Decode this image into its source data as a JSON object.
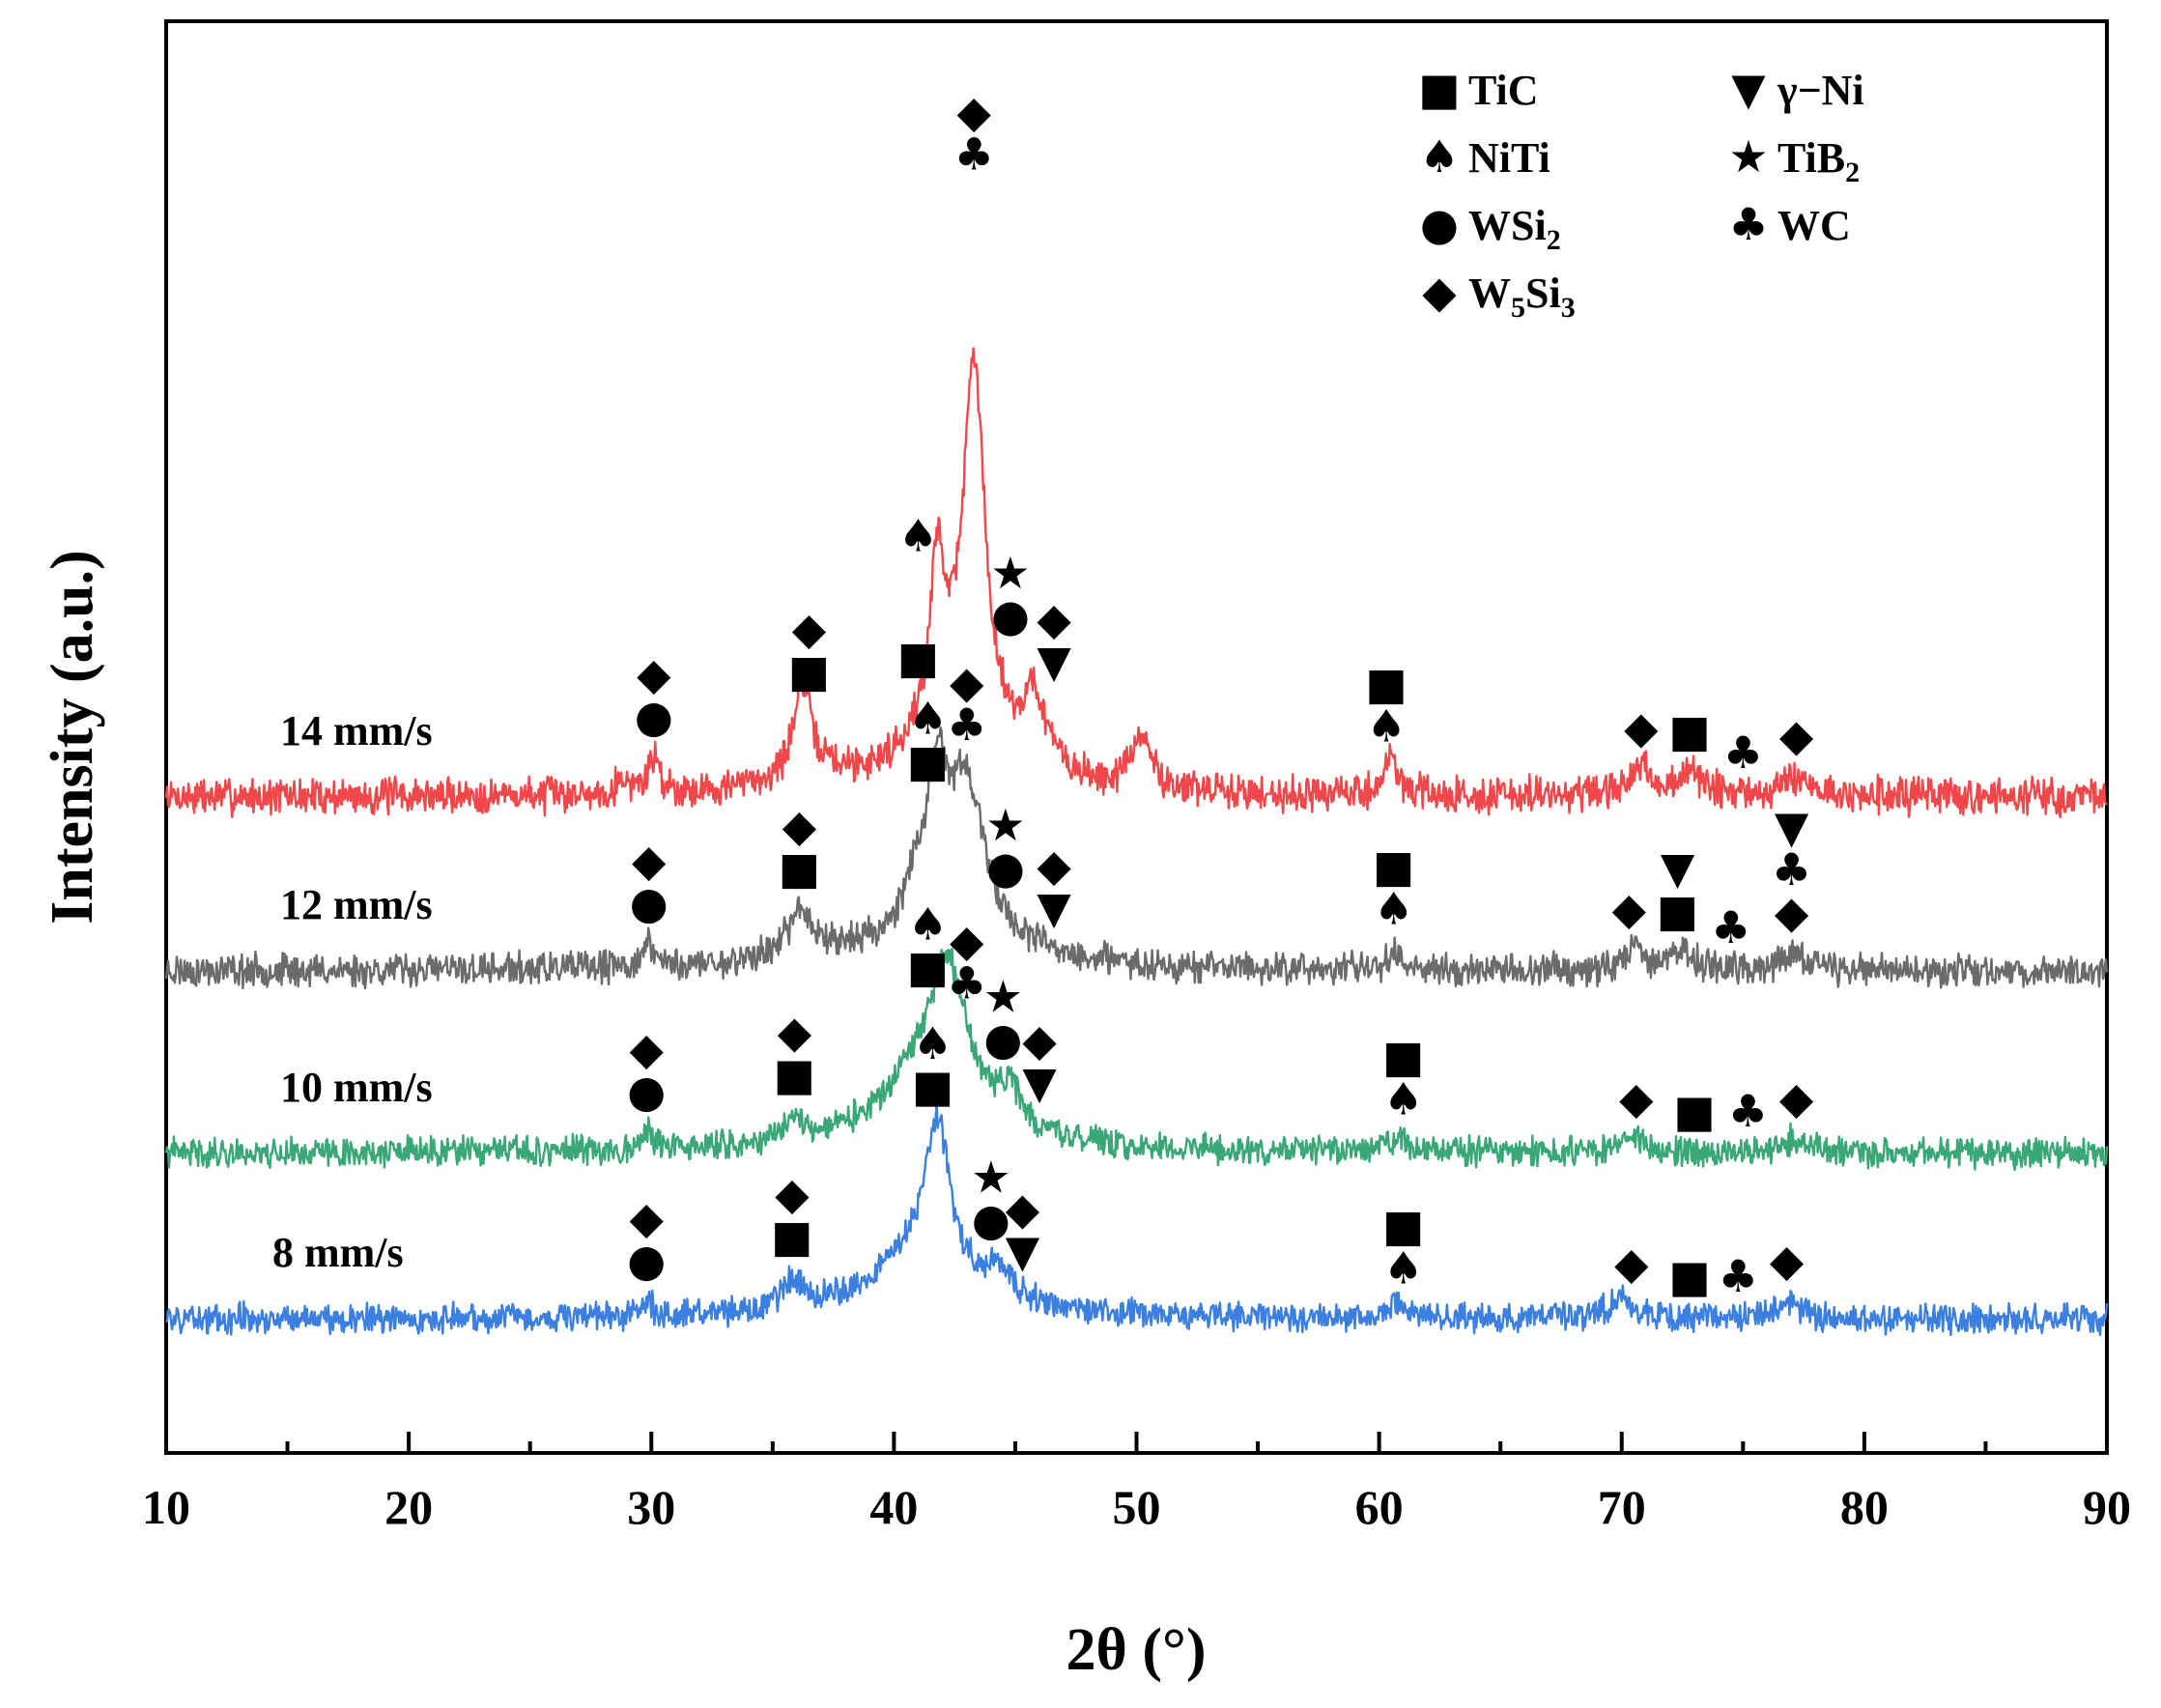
{
  "chart_data": {
    "type": "line",
    "title": "",
    "xlabel": "2θ (°)",
    "ylabel": "Intensity (a.u.)",
    "xlim": [
      10,
      90
    ],
    "xticks": [
      10,
      20,
      30,
      40,
      50,
      60,
      70,
      80,
      90
    ],
    "xtick_labels": [
      "10",
      "20",
      "30",
      "40",
      "50",
      "60",
      "70",
      "80",
      "90"
    ],
    "yticks_shown": false,
    "legend_placement": "top-right",
    "legend": [
      {
        "phase": "TiC",
        "text": "TiC",
        "sub": "",
        "symbol": "square",
        "glyph": "■"
      },
      {
        "phase": "gNi",
        "text": "γ−Ni",
        "sub": "",
        "symbol": "triangle-down",
        "glyph": "▼"
      },
      {
        "phase": "NiTi",
        "text": "NiTi",
        "sub": "",
        "symbol": "spade",
        "glyph": "♠"
      },
      {
        "phase": "TiB2",
        "text": "TiB",
        "sub": "2",
        "symbol": "star",
        "glyph": "★"
      },
      {
        "phase": "WSi2",
        "text": "WSi",
        "sub": "2",
        "symbol": "circle",
        "glyph": "●"
      },
      {
        "phase": "WC",
        "text": "WC",
        "sub": "",
        "symbol": "club",
        "glyph": "♣"
      },
      {
        "phase": "W5Si3",
        "text": "W5Si3",
        "rich": [
          {
            "t": "W",
            "sub": false
          },
          {
            "t": "5",
            "sub": true
          },
          {
            "t": "Si",
            "sub": false
          },
          {
            "t": "3",
            "sub": true
          }
        ],
        "symbol": "diamond",
        "glyph": "◆"
      }
    ],
    "glyphs": {
      "TiC": "■",
      "gNi": "▼",
      "NiTi": "♠",
      "TiB2": "★",
      "WSi2": "●",
      "WC": "♣",
      "W5Si3": "◆"
    },
    "series": [
      {
        "name": "14 mm/s",
        "color": "#f0484a",
        "baseline": 1.95,
        "noise": 0.05,
        "seed": 7,
        "peaks": [
          [
            30.1,
            0.12,
            0.3
          ],
          [
            36.2,
            0.3,
            0.35
          ],
          [
            41.8,
            0.55,
            0.35
          ],
          [
            43.3,
            1.25,
            0.55
          ],
          [
            45.8,
            0.25,
            0.6
          ],
          [
            50.2,
            0.18,
            0.5
          ],
          [
            60.5,
            0.13,
            0.35
          ],
          [
            70.8,
            0.09,
            0.5
          ],
          [
            72.8,
            0.08,
            0.6
          ],
          [
            77.2,
            0.07,
            0.6
          ],
          [
            36.5,
            0.08,
            1.5
          ],
          [
            42.5,
            0.25,
            2.2
          ],
          [
            28.8,
            0.05,
            0.3
          ]
        ],
        "markers": [
          {
            "x": 30.1,
            "phases": [
              "WSi2",
              "W5Si3"
            ]
          },
          {
            "x": 36.5,
            "phases": [
              "TiC",
              "W5Si3"
            ]
          },
          {
            "x": 41.0,
            "phases": [
              "TiC"
            ]
          },
          {
            "x": 41.0,
            "phases": [
              "NiTi"
            ],
            "row": 3
          },
          {
            "x": 43.3,
            "phases": [
              "WC",
              "W5Si3"
            ],
            "row": 4
          },
          {
            "x": 44.8,
            "phases": [
              "WSi2",
              "TiB2"
            ],
            "row": 1
          },
          {
            "x": 46.6,
            "phases": [
              "gNi",
              "W5Si3"
            ],
            "row": 1
          },
          {
            "x": 60.3,
            "phases": [
              "NiTi",
              "TiC"
            ]
          },
          {
            "x": 70.8,
            "phases": [
              "W5Si3"
            ]
          },
          {
            "x": 72.8,
            "phases": [
              "TiC"
            ]
          },
          {
            "x": 75.0,
            "phases": [
              "WC"
            ]
          },
          {
            "x": 77.2,
            "phases": [
              "W5Si3"
            ]
          }
        ]
      },
      {
        "name": "12 mm/s",
        "color": "#6b6b6b",
        "baseline": 1.35,
        "noise": 0.045,
        "seed": 23,
        "peaks": [
          [
            29.9,
            0.08,
            0.3
          ],
          [
            36.1,
            0.12,
            0.5
          ],
          [
            41.8,
            0.45,
            0.5
          ],
          [
            43.0,
            0.45,
            0.8
          ],
          [
            40.8,
            0.12,
            0.4
          ],
          [
            60.6,
            0.07,
            0.35
          ],
          [
            70.5,
            0.08,
            0.5
          ],
          [
            72.5,
            0.07,
            0.5
          ],
          [
            77.0,
            0.06,
            0.5
          ],
          [
            42.3,
            0.2,
            2.5
          ],
          [
            36.5,
            0.06,
            1.6
          ]
        ],
        "markers": [
          {
            "x": 29.9,
            "phases": [
              "WSi2",
              "W5Si3"
            ]
          },
          {
            "x": 36.1,
            "phases": [
              "TiC",
              "W5Si3"
            ]
          },
          {
            "x": 41.4,
            "phases": [
              "TiC",
              "NiTi"
            ]
          },
          {
            "x": 43.0,
            "phases": [
              "WC",
              "W5Si3"
            ]
          },
          {
            "x": 44.6,
            "phases": [
              "WSi2",
              "TiB2"
            ],
            "row": 0
          },
          {
            "x": 46.6,
            "phases": [
              "gNi",
              "W5Si3"
            ],
            "row": 0
          },
          {
            "x": 60.6,
            "phases": [
              "NiTi",
              "TiC"
            ]
          },
          {
            "x": 70.3,
            "phases": [
              "W5Si3"
            ]
          },
          {
            "x": 72.3,
            "phases": [
              "TiC",
              "gNi"
            ]
          },
          {
            "x": 74.5,
            "phases": [
              "WC"
            ]
          },
          {
            "x": 77.0,
            "phases": [
              "W5Si3",
              "WC",
              "gNi"
            ]
          }
        ]
      },
      {
        "name": "10 mm/s",
        "color": "#3aa876",
        "baseline": 0.72,
        "noise": 0.04,
        "seed": 41,
        "peaks": [
          [
            29.8,
            0.06,
            0.3
          ],
          [
            35.9,
            0.08,
            0.5
          ],
          [
            42.2,
            0.45,
            0.9
          ],
          [
            44.8,
            0.12,
            0.5
          ],
          [
            60.8,
            0.05,
            0.5
          ],
          [
            70.5,
            0.05,
            0.7
          ],
          [
            77.2,
            0.05,
            0.6
          ],
          [
            41.5,
            0.25,
            2.6
          ]
        ],
        "markers": [
          {
            "x": 29.8,
            "phases": [
              "WSi2",
              "W5Si3"
            ]
          },
          {
            "x": 35.9,
            "phases": [
              "TiC",
              "W5Si3"
            ]
          },
          {
            "x": 41.4,
            "phases": [
              "TiC",
              "NiTi"
            ]
          },
          {
            "x": 43.0,
            "phases": [
              "WC",
              "W5Si3"
            ]
          },
          {
            "x": 44.5,
            "phases": [
              "WSi2",
              "TiB2"
            ],
            "row": 0
          },
          {
            "x": 46.0,
            "phases": [
              "gNi",
              "W5Si3"
            ],
            "row": 0
          },
          {
            "x": 61.0,
            "phases": [
              "NiTi",
              "TiC"
            ]
          },
          {
            "x": 70.6,
            "phases": [
              "W5Si3"
            ]
          },
          {
            "x": 73.0,
            "phases": [
              "TiC"
            ]
          },
          {
            "x": 75.2,
            "phases": [
              "WC"
            ]
          },
          {
            "x": 77.2,
            "phases": [
              "W5Si3"
            ]
          }
        ]
      },
      {
        "name": "8 mm/s",
        "color": "#3b7fe0",
        "baseline": 0.15,
        "noise": 0.04,
        "seed": 59,
        "peaks": [
          [
            29.8,
            0.05,
            0.3
          ],
          [
            35.8,
            0.1,
            0.5
          ],
          [
            41.8,
            0.5,
            0.6
          ],
          [
            44.3,
            0.1,
            0.6
          ],
          [
            60.6,
            0.05,
            0.5
          ],
          [
            70.0,
            0.07,
            0.6
          ],
          [
            76.8,
            0.06,
            0.6
          ],
          [
            41.0,
            0.22,
            2.4
          ]
        ],
        "markers": [
          {
            "x": 29.8,
            "phases": [
              "WSi2",
              "W5Si3"
            ]
          },
          {
            "x": 35.8,
            "phases": [
              "TiC",
              "W5Si3"
            ]
          },
          {
            "x": 41.6,
            "phases": [
              "TiC",
              "NiTi"
            ]
          },
          {
            "x": 44.0,
            "phases": [
              "WSi2",
              "TiB2"
            ],
            "row": 0
          },
          {
            "x": 45.3,
            "phases": [
              "gNi",
              "W5Si3"
            ],
            "row": 0
          },
          {
            "x": 61.0,
            "phases": [
              "NiTi",
              "TiC"
            ]
          },
          {
            "x": 70.4,
            "phases": [
              "W5Si3"
            ]
          },
          {
            "x": 72.8,
            "phases": [
              "TiC"
            ]
          },
          {
            "x": 74.8,
            "phases": [
              "WC"
            ]
          },
          {
            "x": 76.8,
            "phases": [
              "W5Si3"
            ]
          }
        ]
      }
    ]
  }
}
